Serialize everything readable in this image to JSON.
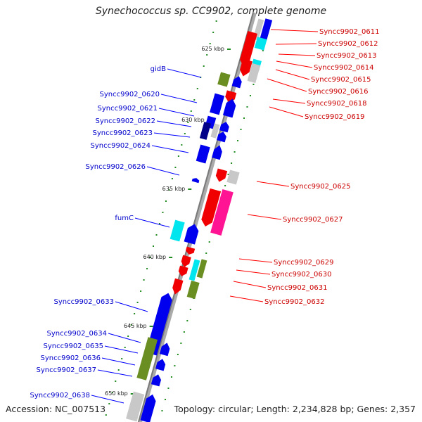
{
  "title": "Synechococcus sp. CC9902, complete genome",
  "accession": "Accession: NC_007513",
  "topology": "Topology: circular; Length: 2,234,828 bp; Genes: 2,357",
  "colors": {
    "red": "#f00000",
    "blue": "#0000ee",
    "olive": "#6b8e23",
    "cyan": "#00e5ee",
    "gray": "#c8c8c8",
    "magenta": "#ff1493",
    "darkblue": "#000088",
    "backbone": "#8c8c8c",
    "tick": "#228b22",
    "red_text": "#cc0000",
    "blue_text": "#0000cc"
  },
  "ticks": [
    "625 kbp",
    "630 kbp",
    "635 kbp",
    "640 kbp",
    "645 kbp",
    "650 kbp"
  ],
  "labels_right": [
    "Syncc9902_0611",
    "Syncc9902_0612",
    "Syncc9902_0613",
    "Syncc9902_0614",
    "Syncc9902_0615",
    "Syncc9902_0616",
    "Syncc9902_0618",
    "Syncc9902_0619",
    "Syncc9902_0625",
    "Syncc9902_0627",
    "Syncc9902_0629",
    "Syncc9902_0630",
    "Syncc9902_0631",
    "Syncc9902_0632"
  ],
  "labels_left": [
    "gidB",
    "Syncc9902_0620",
    "Syncc9902_0621",
    "Syncc9902_0622",
    "Syncc9902_0623",
    "Syncc9902_0624",
    "Syncc9902_0626",
    "fumC",
    "Syncc9902_0633",
    "Syncc9902_0634",
    "Syncc9902_0635",
    "Syncc9902_0636",
    "Syncc9902_0637",
    "Syncc9902_0638"
  ]
}
